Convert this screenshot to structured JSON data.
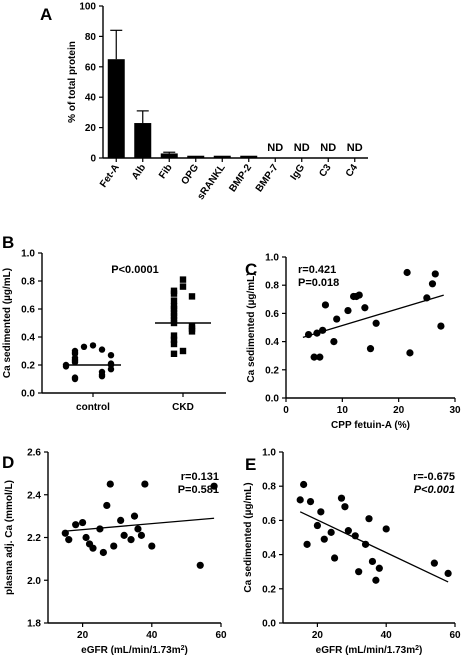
{
  "chart_data": [
    {
      "panel": "A",
      "type": "bar",
      "ylabel": "% of total protein",
      "ylim": [
        0,
        100
      ],
      "yticks": [
        0,
        20,
        40,
        60,
        80,
        100
      ],
      "categories": [
        "Fet-A",
        "Alb",
        "Fib",
        "OPG",
        "sRANKL",
        "BMP-2",
        "BMP-7",
        "IgG",
        "C3",
        "C4"
      ],
      "values": [
        65,
        23,
        3,
        1.5,
        1.5,
        1.5,
        null,
        null,
        null,
        null
      ],
      "errors": [
        19,
        8,
        0.8,
        0.3,
        0.3,
        0.3,
        null,
        null,
        null,
        null
      ],
      "nd_label": "ND"
    },
    {
      "panel": "B",
      "type": "scatter",
      "ylabel": "Ca sedimented (µg/mL)",
      "ylim": [
        0,
        1.0
      ],
      "yticks": [
        "0.0",
        "0.2",
        "0.4",
        "0.6",
        "0.8",
        "1.0"
      ],
      "categories": [
        "control",
        "CKD"
      ],
      "annotation": "P<0.0001",
      "series": [
        {
          "category": "control",
          "median": 0.2,
          "values": [
            0.34,
            0.33,
            0.31,
            0.3,
            0.29,
            0.28,
            0.27,
            0.25,
            0.24,
            0.23,
            0.22,
            0.21,
            0.2,
            0.2,
            0.19,
            0.17,
            0.15,
            0.13,
            0.12,
            0.11,
            0.1
          ]
        },
        {
          "category": "CKD",
          "median": 0.5,
          "values": [
            0.81,
            0.76,
            0.73,
            0.71,
            0.69,
            0.66,
            0.62,
            0.6,
            0.57,
            0.55,
            0.52,
            0.5,
            0.48,
            0.46,
            0.44,
            0.41,
            0.38,
            0.35,
            0.3,
            0.28
          ]
        }
      ]
    },
    {
      "panel": "C",
      "type": "scatter",
      "xlabel": "CPP fetuin-A (%)",
      "ylabel": "Ca sedimented (µg/mL)",
      "xlim": [
        0,
        30
      ],
      "ylim": [
        0,
        1.0
      ],
      "xticks": [
        "0",
        "10",
        "20",
        "30"
      ],
      "yticks": [
        "0.0",
        "0.2",
        "0.4",
        "0.6",
        "0.8",
        "1.0"
      ],
      "annotations": [
        "r=0.421",
        "P=0.018"
      ],
      "x": [
        4,
        5,
        5.5,
        6,
        6.5,
        7,
        8.5,
        9,
        11,
        12,
        12.5,
        13,
        14,
        15,
        16,
        21.5,
        22,
        25,
        26,
        26.5,
        27.5
      ],
      "y": [
        0.45,
        0.29,
        0.46,
        0.29,
        0.48,
        0.66,
        0.4,
        0.56,
        0.62,
        0.72,
        0.72,
        0.73,
        0.64,
        0.35,
        0.53,
        0.89,
        0.32,
        0.71,
        0.81,
        0.88,
        0.51
      ],
      "fit": {
        "x": [
          3,
          28
        ],
        "y": [
          0.43,
          0.73
        ]
      }
    },
    {
      "panel": "D",
      "type": "scatter",
      "xlabel": "eGFR (mL/min/1.73m²)",
      "ylabel": "plasma adj. Ca (mmol/L)",
      "xlim": [
        10,
        60
      ],
      "ylim": [
        1.8,
        2.6
      ],
      "xticks": [
        "20",
        "40",
        "60"
      ],
      "yticks": [
        "1.8",
        "2.0",
        "2.2",
        "2.4",
        "2.6"
      ],
      "annotations": [
        "r=0.131",
        "P=0.581"
      ],
      "x": [
        15,
        16,
        18,
        20,
        21,
        22,
        23,
        25,
        26,
        27,
        28,
        29,
        31,
        32,
        34,
        35,
        36,
        37,
        38,
        40,
        54,
        58
      ],
      "y": [
        2.22,
        2.19,
        2.26,
        2.27,
        2.2,
        2.17,
        2.15,
        2.24,
        2.13,
        2.35,
        2.45,
        2.16,
        2.28,
        2.21,
        2.19,
        2.3,
        2.24,
        2.21,
        2.45,
        2.16,
        2.07,
        2.44
      ],
      "fit": {
        "x": [
          15,
          58
        ],
        "y": [
          2.23,
          2.29
        ]
      }
    },
    {
      "panel": "E",
      "type": "scatter",
      "xlabel": "eGFR (mL/min/1.73m²)",
      "ylabel": "Ca sedimented (µg/mL)",
      "xlim": [
        10,
        60
      ],
      "ylim": [
        0,
        1.0
      ],
      "xticks": [
        "20",
        "40",
        "60"
      ],
      "yticks": [
        "0.0",
        "0.2",
        "0.4",
        "0.6",
        "0.8",
        "1.0"
      ],
      "annotations": [
        "r=-0.675",
        "P<0.001"
      ],
      "x": [
        15,
        16,
        17,
        18,
        20,
        21,
        22,
        24,
        25,
        27,
        28,
        29,
        31,
        32,
        34,
        35,
        36,
        37,
        38,
        40,
        54,
        58
      ],
      "y": [
        0.72,
        0.81,
        0.46,
        0.71,
        0.57,
        0.65,
        0.49,
        0.53,
        0.38,
        0.73,
        0.68,
        0.54,
        0.51,
        0.3,
        0.46,
        0.61,
        0.36,
        0.25,
        0.32,
        0.55,
        0.35,
        0.29
      ],
      "fit": {
        "x": [
          15,
          58
        ],
        "y": [
          0.65,
          0.24
        ]
      }
    }
  ],
  "panel_labels": {
    "A": "A",
    "B": "B",
    "C": "C",
    "D": "D",
    "E": "E"
  }
}
